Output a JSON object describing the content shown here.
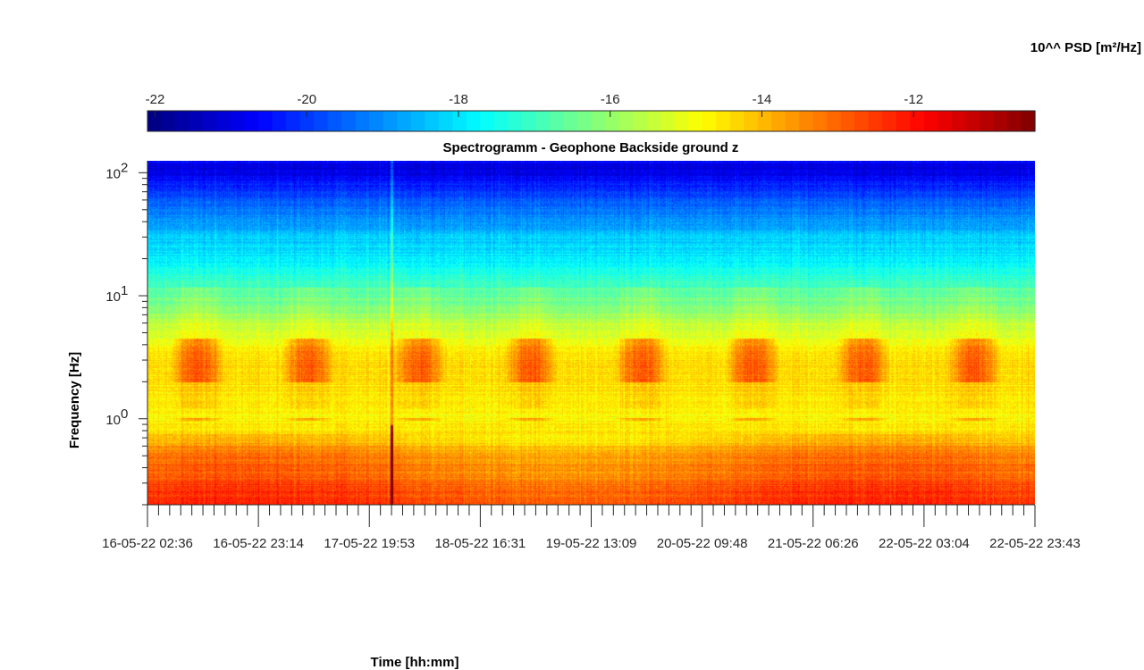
{
  "chart_data": {
    "type": "heatmap",
    "title": "Spectrogramm - Geophone Backside ground z",
    "xlabel": "Time [hh:mm]",
    "ylabel": "Frequency [Hz]",
    "yscale": "log",
    "ylim": [
      0.2,
      125
    ],
    "colormap": "jet",
    "colorbar": {
      "label": "10^^ PSD [m²/Hz]",
      "range": [
        -22.1,
        -10.4
      ],
      "ticks": [
        -22,
        -20,
        -18,
        -16,
        -14,
        -12
      ],
      "tick_labels": [
        "-22",
        "-20",
        "-18",
        "-16",
        "-14",
        "-12"
      ],
      "placement": "top"
    },
    "x_tick_labels": [
      "16-05-22 02:36",
      "16-05-22 23:14",
      "17-05-22 19:53",
      "18-05-22 16:31",
      "19-05-22 13:09",
      "20-05-22 09:48",
      "21-05-22 06:26",
      "22-05-22 03:04",
      "22-05-22 23:43"
    ],
    "y_ticks": [
      1,
      10,
      100
    ],
    "y_tick_labels": [
      {
        "base": "10",
        "exp": "0"
      },
      {
        "base": "10",
        "exp": "1"
      },
      {
        "base": "10",
        "exp": "2"
      }
    ],
    "psd_profile_log10": [
      {
        "f": 0.2,
        "v": -12.7
      },
      {
        "f": 0.3,
        "v": -13.1
      },
      {
        "f": 0.5,
        "v": -13.6
      },
      {
        "f": 0.7,
        "v": -14.4
      },
      {
        "f": 1.0,
        "v": -14.7
      },
      {
        "f": 3.0,
        "v": -14.3
      },
      {
        "f": 6.0,
        "v": -15.6
      },
      {
        "f": 10.0,
        "v": -16.6
      },
      {
        "f": 20.0,
        "v": -17.8
      },
      {
        "f": 50.0,
        "v": -19.0
      },
      {
        "f": 100.0,
        "v": -20.6
      }
    ],
    "features": [
      {
        "name": "daytime activity 2-4 Hz",
        "f_range": [
          2,
          4.5
        ]
      },
      {
        "name": "1 Hz line",
        "f": 1.0
      },
      {
        "name": "broadband event",
        "x_tick_index": 2.2
      }
    ]
  }
}
